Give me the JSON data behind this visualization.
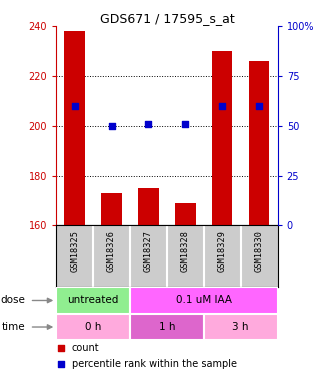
{
  "title": "GDS671 / 17595_s_at",
  "samples": [
    "GSM18325",
    "GSM18326",
    "GSM18327",
    "GSM18328",
    "GSM18329",
    "GSM18330"
  ],
  "bar_values": [
    238,
    173,
    175,
    169,
    230,
    226
  ],
  "bar_bottom": 160,
  "blue_values": [
    60,
    50,
    51,
    51,
    60,
    60
  ],
  "left_ylim": [
    160,
    240
  ],
  "right_ylim": [
    0,
    100
  ],
  "left_yticks": [
    160,
    180,
    200,
    220,
    240
  ],
  "right_yticks": [
    0,
    25,
    50,
    75,
    100
  ],
  "right_yticklabels": [
    "0",
    "25",
    "50",
    "75",
    "100%"
  ],
  "bar_color": "#cc0000",
  "blue_color": "#0000cc",
  "dose_labels": [
    {
      "label": "untreated",
      "color": "#90ee90",
      "span": [
        0,
        2
      ]
    },
    {
      "label": "0.1 uM IAA",
      "color": "#ff66ff",
      "span": [
        2,
        6
      ]
    }
  ],
  "time_labels": [
    {
      "label": "0 h",
      "color": "#ffaadd",
      "span": [
        0,
        2
      ]
    },
    {
      "label": "1 h",
      "color": "#dd66cc",
      "span": [
        2,
        4
      ]
    },
    {
      "label": "3 h",
      "color": "#ffaadd",
      "span": [
        4,
        6
      ]
    }
  ],
  "dose_row_label": "dose",
  "time_row_label": "time",
  "legend_count_label": "count",
  "legend_pct_label": "percentile rank within the sample",
  "left_axis_color": "#cc0000",
  "right_axis_color": "#0000cc",
  "bg_color": "white",
  "sample_box_color": "#cccccc"
}
